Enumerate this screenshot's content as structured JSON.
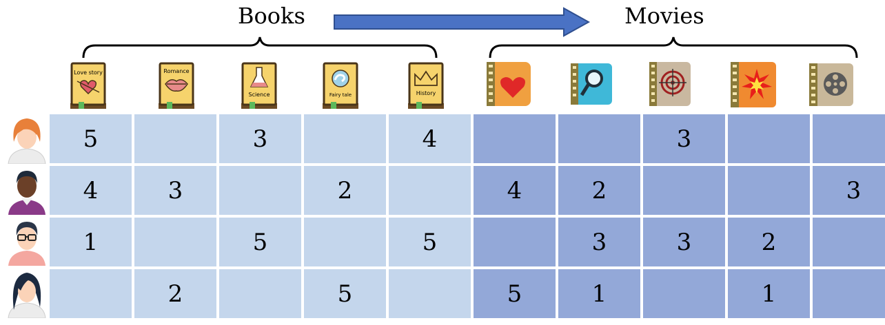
{
  "headers": {
    "left": "Books",
    "right": "Movies"
  },
  "colors": {
    "book_cell": "#c4d6ec",
    "movie_cell": "#93a8d8",
    "arrow": "#4a72c4",
    "book_icon": "#f6d36c"
  },
  "books": [
    {
      "label": "Love story",
      "icon": "heart-arrow-icon"
    },
    {
      "label": "Romance",
      "icon": "lips-icon"
    },
    {
      "label": "Science",
      "icon": "flask-icon"
    },
    {
      "label": "Fairy tale",
      "icon": "swirl-icon"
    },
    {
      "label": "History",
      "icon": "crown-icon"
    }
  ],
  "movies": [
    {
      "icon": "heart-film-icon"
    },
    {
      "icon": "magnifier-film-icon"
    },
    {
      "icon": "target-film-icon"
    },
    {
      "icon": "explosion-film-icon"
    },
    {
      "icon": "reel-film-icon"
    }
  ],
  "users": [
    {
      "avatar": "woman-red-hair-avatar",
      "ratings": [
        "5",
        "",
        "3",
        "",
        "4",
        "",
        "",
        "3",
        "",
        ""
      ]
    },
    {
      "avatar": "man-dark-skin-avatar",
      "ratings": [
        "4",
        "3",
        "",
        "2",
        "",
        "4",
        "2",
        "",
        "",
        "3"
      ]
    },
    {
      "avatar": "man-glasses-avatar",
      "ratings": [
        "1",
        "",
        "5",
        "",
        "5",
        "",
        "3",
        "3",
        "2",
        ""
      ]
    },
    {
      "avatar": "woman-dark-hair-avatar",
      "ratings": [
        "",
        "2",
        "",
        "5",
        "",
        "5",
        "1",
        "",
        "1",
        ""
      ]
    }
  ]
}
